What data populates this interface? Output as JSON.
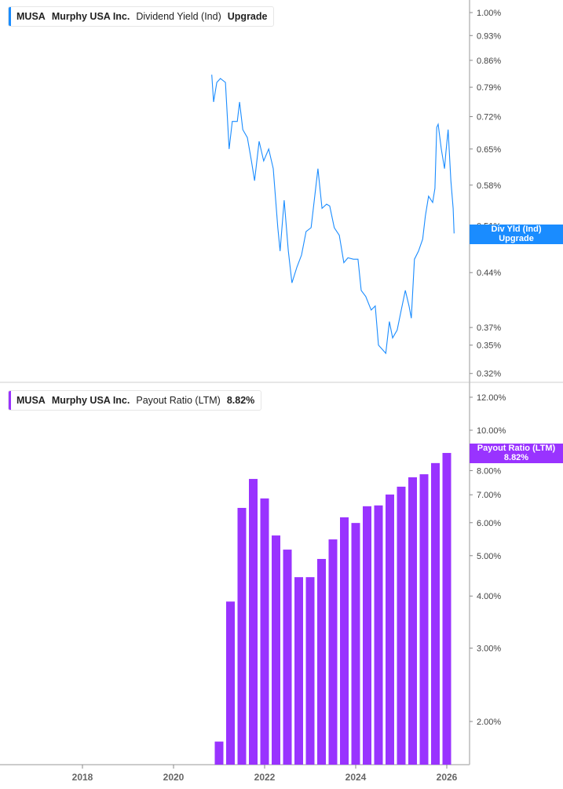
{
  "colors": {
    "yield_line": "#1a8cff",
    "payout_bar": "#9933ff",
    "axis": "#bbbbbb"
  },
  "top_legend": {
    "ticker": "MUSA",
    "company": "Murphy USA Inc.",
    "metric": "Dividend Yield (Ind)",
    "value": "Upgrade"
  },
  "top_badge": {
    "line1": "Div Yld (Ind)",
    "line2": "Upgrade"
  },
  "bottom_legend": {
    "ticker": "MUSA",
    "company": "Murphy USA Inc.",
    "metric": "Payout Ratio (LTM)",
    "value": "8.82%"
  },
  "bottom_badge": {
    "line1": "Payout Ratio (LTM)",
    "line2": "8.82%"
  },
  "chart_data": [
    {
      "type": "line",
      "title": "Dividend Yield (Ind)",
      "y_scale": "log",
      "ylim": [
        0.31,
        1.01
      ],
      "y_ticks": [
        "1.00%",
        "0.93%",
        "0.86%",
        "0.79%",
        "0.72%",
        "0.65%",
        "0.58%",
        "0.51%",
        "0.44%",
        "0.37%",
        "0.35%",
        "0.32%"
      ],
      "y_tick_values": [
        1.0,
        0.93,
        0.86,
        0.79,
        0.72,
        0.65,
        0.58,
        0.51,
        0.44,
        0.37,
        0.35,
        0.32
      ],
      "x": [
        2020.84,
        2020.88,
        2020.95,
        2021.03,
        2021.14,
        2021.22,
        2021.29,
        2021.4,
        2021.45,
        2021.52,
        2021.62,
        2021.71,
        2021.78,
        2021.88,
        2021.98,
        2022.09,
        2022.19,
        2022.29,
        2022.34,
        2022.43,
        2022.52,
        2022.6,
        2022.71,
        2022.81,
        2022.91,
        2023.02,
        2023.12,
        2023.17,
        2023.26,
        2023.36,
        2023.43,
        2023.53,
        2023.64,
        2023.74,
        2023.83,
        2023.95,
        2024.05,
        2024.12,
        2024.22,
        2024.34,
        2024.43,
        2024.5,
        2024.59,
        2024.66,
        2024.74,
        2024.81,
        2024.91,
        2025.0,
        2025.09,
        2025.17,
        2025.22,
        2025.29,
        2025.38,
        2025.47,
        2025.53,
        2025.6,
        2025.69,
        2025.74,
        2025.78,
        2025.81,
        2025.88,
        2025.95,
        2025.98,
        2026.03,
        2026.09,
        2026.14,
        2026.16
      ],
      "values": [
        0.822,
        0.754,
        0.802,
        0.812,
        0.802,
        0.65,
        0.709,
        0.709,
        0.754,
        0.691,
        0.674,
        0.626,
        0.588,
        0.666,
        0.626,
        0.65,
        0.611,
        0.507,
        0.471,
        0.553,
        0.471,
        0.426,
        0.448,
        0.465,
        0.501,
        0.507,
        0.574,
        0.611,
        0.539,
        0.546,
        0.543,
        0.507,
        0.495,
        0.454,
        0.461,
        0.459,
        0.459,
        0.416,
        0.408,
        0.391,
        0.396,
        0.35,
        0.345,
        0.341,
        0.377,
        0.358,
        0.367,
        0.391,
        0.416,
        0.396,
        0.381,
        0.459,
        0.471,
        0.489,
        0.526,
        0.56,
        0.549,
        0.574,
        0.696,
        0.703,
        0.65,
        0.611,
        0.642,
        0.691,
        0.588,
        0.539,
        0.498
      ]
    },
    {
      "type": "bar",
      "title": "Payout Ratio (LTM)",
      "y_scale": "log",
      "ylim": [
        1.6,
        12.5
      ],
      "y_ticks": [
        "12.00%",
        "10.00%",
        "8.00%",
        "7.00%",
        "6.00%",
        "5.00%",
        "4.00%",
        "3.00%",
        "2.00%"
      ],
      "y_tick_values": [
        12,
        10,
        8,
        7,
        6,
        5,
        4,
        3,
        2
      ],
      "x": [
        2021.0,
        2021.25,
        2021.5,
        2021.75,
        2022.0,
        2022.25,
        2022.5,
        2022.75,
        2023.0,
        2023.25,
        2023.5,
        2023.75,
        2024.0,
        2024.25,
        2024.5,
        2024.75,
        2025.0,
        2025.25,
        2025.5,
        2025.75,
        2026.0
      ],
      "values": [
        1.79,
        3.88,
        6.51,
        7.64,
        6.86,
        5.59,
        5.17,
        4.44,
        4.44,
        4.91,
        5.47,
        6.18,
        5.99,
        6.57,
        6.6,
        7.01,
        7.32,
        7.71,
        7.84,
        8.34,
        8.82
      ]
    }
  ],
  "x_axis": {
    "ticks": [
      "2018",
      "2020",
      "2022",
      "2024",
      "2026"
    ],
    "tick_values": [
      2018,
      2020,
      2022,
      2024,
      2026
    ]
  }
}
